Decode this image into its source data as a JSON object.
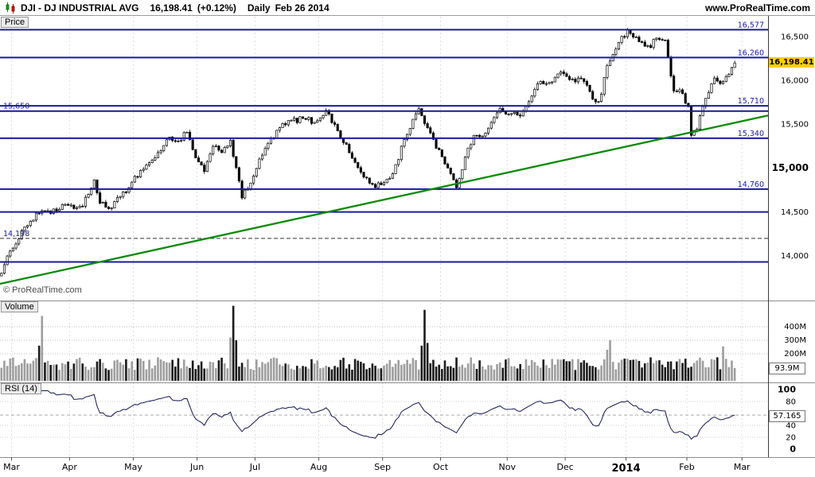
{
  "header": {
    "symbol": "DJI - DJ INDUSTRIAL AVG",
    "last_price": "16,198.41",
    "change_pct": "(+0.12%)",
    "timeframe": "Daily",
    "date": "Feb 26 2014",
    "website": "www.ProRealTime.com"
  },
  "price_pane": {
    "tab_label": "Price",
    "copyright": "© ProRealTime.com",
    "current_price_label": "16,198.41",
    "axis_ticks": [
      {
        "value": 16500,
        "label": "16,500",
        "bold": false
      },
      {
        "value": 16000,
        "label": "16,000",
        "bold": false
      },
      {
        "value": 15500,
        "label": "15,500",
        "bold": false
      },
      {
        "value": 15000,
        "label": "15,000",
        "bold": true
      },
      {
        "value": 14500,
        "label": "14,500",
        "bold": false
      },
      {
        "value": 14000,
        "label": "14,000",
        "bold": false
      }
    ]
  },
  "volume_pane": {
    "tab_label": "Volume",
    "axis_ticks": [
      {
        "value": 400,
        "label": "400M"
      },
      {
        "value": 300,
        "label": "300M"
      },
      {
        "value": 200,
        "label": "200M"
      }
    ],
    "current_volume_label": "93.9M"
  },
  "rsi_pane": {
    "tab_label": "RSI (14)",
    "axis_ticks": [
      {
        "value": 100,
        "label": "100",
        "bold": true
      },
      {
        "value": 80,
        "label": "80",
        "bold": false
      },
      {
        "value": 40,
        "label": "40",
        "bold": false
      },
      {
        "value": 20,
        "label": "20",
        "bold": false
      },
      {
        "value": 0,
        "label": "0",
        "bold": true
      }
    ],
    "current_rsi_label": "57.165"
  },
  "time_axis": {
    "months": [
      {
        "label": "Mar",
        "day": 4,
        "bold": false
      },
      {
        "label": "Apr",
        "day": 24,
        "bold": false
      },
      {
        "label": "May",
        "day": 46,
        "bold": false
      },
      {
        "label": "Jun",
        "day": 68,
        "bold": false
      },
      {
        "label": "Jul",
        "day": 88,
        "bold": false
      },
      {
        "label": "Aug",
        "day": 110,
        "bold": false
      },
      {
        "label": "Sep",
        "day": 132,
        "bold": false
      },
      {
        "label": "Oct",
        "day": 152,
        "bold": false
      },
      {
        "label": "Nov",
        "day": 175,
        "bold": false
      },
      {
        "label": "Dec",
        "day": 195,
        "bold": false
      },
      {
        "label": "2014",
        "day": 216,
        "bold": true
      },
      {
        "label": "Feb",
        "day": 237,
        "bold": false
      },
      {
        "label": "Mar",
        "day": 256,
        "bold": false
      }
    ]
  },
  "chart_data": {
    "type": "candlestick",
    "title": "DJI - DJ INDUSTRIAL AVG, Daily, Feb 26 2014",
    "x_range": [
      "Feb 25 2013",
      "Mar 3 2014"
    ],
    "price_axis_range": [
      13490,
      16735
    ],
    "volume_axis_range_m": [
      0,
      450
    ],
    "rsi_axis_range": [
      0,
      100
    ],
    "total_days": 265,
    "last_day": 253,
    "last_close": 16198.41,
    "last_change_pct": 0.12,
    "last_volume_m": 93.9,
    "last_rsi": 57.165,
    "close_waypoints": [
      [
        0,
        13800
      ],
      [
        3,
        14054
      ],
      [
        8,
        14329
      ],
      [
        14,
        14514
      ],
      [
        19,
        14512
      ],
      [
        23,
        14578
      ],
      [
        26,
        14550
      ],
      [
        28,
        14565
      ],
      [
        32,
        14865
      ],
      [
        34,
        14599
      ],
      [
        37,
        14537
      ],
      [
        41,
        14676
      ],
      [
        45,
        14840
      ],
      [
        48,
        14974
      ],
      [
        53,
        15118
      ],
      [
        58,
        15354
      ],
      [
        61,
        15307
      ],
      [
        64,
        15409
      ],
      [
        67,
        15116
      ],
      [
        70,
        14960
      ],
      [
        73,
        15248
      ],
      [
        76,
        15176
      ],
      [
        79,
        15318
      ],
      [
        83,
        14659
      ],
      [
        87,
        14909
      ],
      [
        91,
        15224
      ],
      [
        96,
        15460
      ],
      [
        100,
        15545
      ],
      [
        104,
        15567
      ],
      [
        108,
        15521
      ],
      [
        112,
        15658
      ],
      [
        116,
        15425
      ],
      [
        121,
        15112
      ],
      [
        125,
        14897
      ],
      [
        129,
        14776
      ],
      [
        131,
        14810
      ],
      [
        135,
        14937
      ],
      [
        139,
        15326
      ],
      [
        144,
        15677
      ],
      [
        148,
        15401
      ],
      [
        152,
        15130
      ],
      [
        155,
        14936
      ],
      [
        157,
        14776
      ],
      [
        160,
        15126
      ],
      [
        163,
        15374
      ],
      [
        167,
        15399
      ],
      [
        172,
        15680
      ],
      [
        175,
        15616
      ],
      [
        179,
        15594
      ],
      [
        185,
        15962
      ],
      [
        189,
        15976
      ],
      [
        193,
        16097
      ],
      [
        196,
        16009
      ],
      [
        200,
        16020
      ],
      [
        205,
        15755
      ],
      [
        207,
        15843
      ],
      [
        209,
        16168
      ],
      [
        212,
        16357
      ],
      [
        216,
        16576
      ],
      [
        220,
        16441
      ],
      [
        224,
        16374
      ],
      [
        226,
        16482
      ],
      [
        229,
        16458
      ],
      [
        232,
        15879
      ],
      [
        235,
        15849
      ],
      [
        237,
        15699
      ],
      [
        238,
        15373
      ],
      [
        240,
        15445
      ],
      [
        243,
        15795
      ],
      [
        246,
        16027
      ],
      [
        248,
        15963
      ],
      [
        250,
        16040
      ],
      [
        253,
        16198.41
      ]
    ],
    "support_resistance_levels": [
      {
        "value": 16577,
        "label": "16,577",
        "label_side": "right"
      },
      {
        "value": 16260,
        "label": "16,260",
        "label_side": "right"
      },
      {
        "value": 15710,
        "label": "15,710",
        "label_side": "right"
      },
      {
        "value": 15650,
        "label": "15,650",
        "label_side": "left"
      },
      {
        "value": 15340,
        "label": "15,340",
        "label_side": "right"
      },
      {
        "value": 14760,
        "label": "14,760",
        "label_side": "right"
      },
      {
        "value": 14500,
        "label": "",
        "label_side": "none"
      },
      {
        "value": 13930,
        "label": "",
        "label_side": "none"
      }
    ],
    "dashed_level": {
      "value": 14198,
      "label": "14,198",
      "label_side": "left"
    },
    "trendline": {
      "start_day": 0,
      "start_value": 13680,
      "end_day": 265,
      "end_value": 15600
    },
    "volume_spikes_m": {
      "13": 260,
      "14": 480,
      "79": 320,
      "80": 555,
      "81": 300,
      "145": 260,
      "146": 525,
      "147": 280,
      "209": 230,
      "210": 300,
      "249": 255,
      "252": 150,
      "253": 93.9
    },
    "colors": {
      "level_line": "#1a1aa0",
      "trend_line": "#0a8a0a",
      "candle_up_fill": "#ffffff",
      "candle_down_fill": "#000000",
      "candle_stroke": "#000000",
      "volume_up": "#9e9e9e",
      "volume_down": "#1b1b1b",
      "rsi_line": "#15154f",
      "current_price_bg": "#ffce00"
    }
  }
}
